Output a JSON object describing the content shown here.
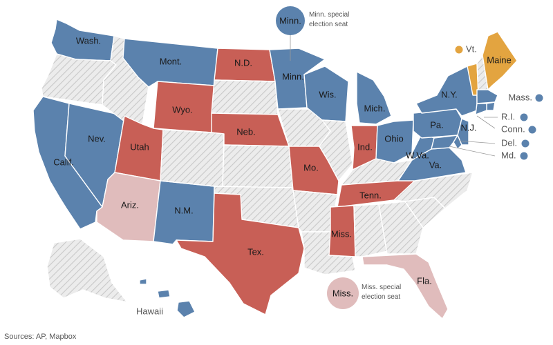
{
  "colors": {
    "dem": "#5b82ad",
    "rep": "#c85f56",
    "rep_light": "#e0bcbc",
    "ind": "#e3a440",
    "none_bg": "#ececec",
    "none_stripe": "#c8c8c8"
  },
  "states": [
    {
      "key": "wa",
      "label": "Wash.",
      "party": "dem"
    },
    {
      "key": "or",
      "label": "",
      "party": "none"
    },
    {
      "key": "ca",
      "label": "Calif.",
      "party": "dem"
    },
    {
      "key": "nv",
      "label": "Nev.",
      "party": "dem"
    },
    {
      "key": "id",
      "label": "",
      "party": "none"
    },
    {
      "key": "mt",
      "label": "Mont.",
      "party": "dem"
    },
    {
      "key": "wy",
      "label": "Wyo.",
      "party": "rep"
    },
    {
      "key": "ut",
      "label": "Utah",
      "party": "rep"
    },
    {
      "key": "az",
      "label": "Ariz.",
      "party": "rep_light"
    },
    {
      "key": "nm",
      "label": "N.M.",
      "party": "dem"
    },
    {
      "key": "co",
      "label": "",
      "party": "none"
    },
    {
      "key": "nd",
      "label": "N.D.",
      "party": "rep"
    },
    {
      "key": "sd",
      "label": "",
      "party": "none"
    },
    {
      "key": "ne",
      "label": "Neb.",
      "party": "rep"
    },
    {
      "key": "ks",
      "label": "",
      "party": "none"
    },
    {
      "key": "ok",
      "label": "",
      "party": "none"
    },
    {
      "key": "tx",
      "label": "Tex.",
      "party": "rep"
    },
    {
      "key": "mn",
      "label": "Minn.",
      "party": "dem"
    },
    {
      "key": "ia",
      "label": "",
      "party": "none"
    },
    {
      "key": "mo",
      "label": "Mo.",
      "party": "rep"
    },
    {
      "key": "ar",
      "label": "",
      "party": "none"
    },
    {
      "key": "la",
      "label": "",
      "party": "none"
    },
    {
      "key": "wi",
      "label": "Wis.",
      "party": "dem"
    },
    {
      "key": "il",
      "label": "",
      "party": "none"
    },
    {
      "key": "mi",
      "label": "Mich.",
      "party": "dem"
    },
    {
      "key": "in",
      "label": "Ind.",
      "party": "rep"
    },
    {
      "key": "oh",
      "label": "Ohio",
      "party": "dem"
    },
    {
      "key": "ky",
      "label": "",
      "party": "none"
    },
    {
      "key": "tn",
      "label": "Tenn.",
      "party": "rep"
    },
    {
      "key": "ms",
      "label": "Miss.",
      "party": "rep"
    },
    {
      "key": "al",
      "label": "",
      "party": "none"
    },
    {
      "key": "ga",
      "label": "",
      "party": "none"
    },
    {
      "key": "fl",
      "label": "Fla.",
      "party": "rep_light"
    },
    {
      "key": "sc",
      "label": "",
      "party": "none"
    },
    {
      "key": "nc",
      "label": "",
      "party": "none"
    },
    {
      "key": "va",
      "label": "Va.",
      "party": "dem"
    },
    {
      "key": "wv",
      "label": "W.Va.",
      "party": "dem"
    },
    {
      "key": "pa",
      "label": "Pa.",
      "party": "dem"
    },
    {
      "key": "ny",
      "label": "N.Y.",
      "party": "dem"
    },
    {
      "key": "vt",
      "label": "",
      "party": "ind"
    },
    {
      "key": "nh",
      "label": "",
      "party": "none"
    },
    {
      "key": "me",
      "label": "Maine",
      "party": "ind"
    },
    {
      "key": "ma",
      "label": "",
      "party": "dem"
    },
    {
      "key": "ri",
      "label": "",
      "party": "dem"
    },
    {
      "key": "ct",
      "label": "",
      "party": "dem"
    },
    {
      "key": "nj",
      "label": "N.J.",
      "party": "dem"
    },
    {
      "key": "de",
      "label": "",
      "party": "dem"
    },
    {
      "key": "md",
      "label": "",
      "party": "dem"
    },
    {
      "key": "ak",
      "label": "",
      "party": "none"
    },
    {
      "key": "hi",
      "label": "",
      "party": "dem"
    }
  ],
  "callouts": {
    "vt": "Vt.",
    "mass": "Mass.",
    "ri": "R.I.",
    "conn": "Conn.",
    "del": "Del.",
    "md": "Md.",
    "hawaii": "Hawaii"
  },
  "special_seats": {
    "minn": {
      "label": "Minn.",
      "note_line1": "Minn. special",
      "note_line2": "election seat",
      "party": "dem"
    },
    "miss": {
      "label": "Miss.",
      "note_line1": "Miss. special",
      "note_line2": "election seat",
      "party": "rep_light"
    }
  },
  "source": "Sources: AP, Mapbox"
}
